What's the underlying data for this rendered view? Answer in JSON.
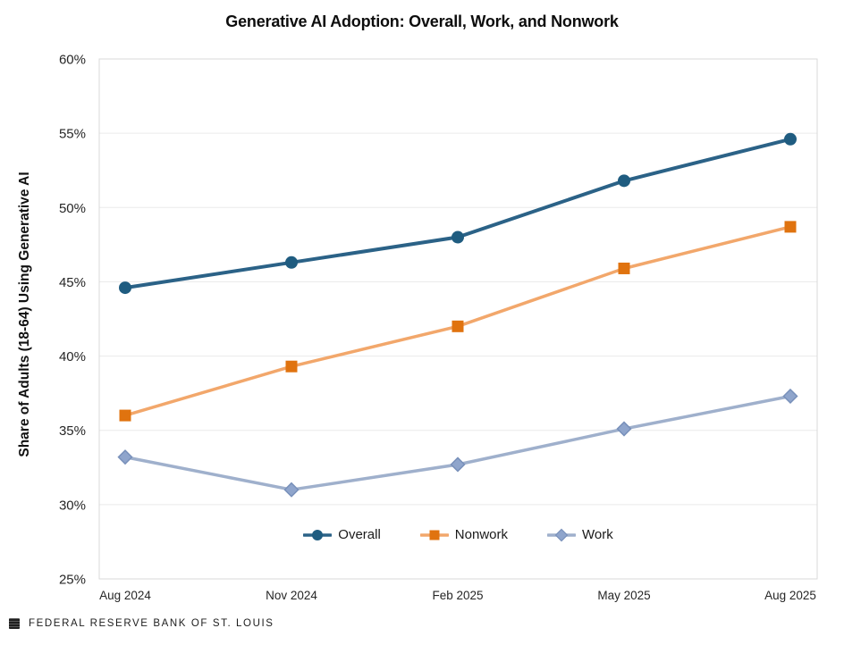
{
  "page": {
    "footer": {
      "org": "FEDERAL RESERVE BANK OF ST. LOUIS"
    }
  },
  "chart_data": {
    "type": "line",
    "title": "Generative AI Adoption: Overall, Work, and Nonwork",
    "xlabel": "",
    "ylabel": "Share of Adults (18-64) Using Generative AI",
    "categories": [
      "Aug 2024",
      "Nov 2024",
      "Feb 2025",
      "May 2025",
      "Aug 2025"
    ],
    "y_ticks": [
      "60%",
      "55%",
      "50%",
      "45%",
      "40%",
      "35%",
      "30%",
      "25%"
    ],
    "ylim": [
      25,
      60
    ],
    "grid": "horizontal",
    "legend_position": "bottom-center-inside",
    "colors": {
      "gridline": "#EAEAEA",
      "plot_border": "#D9D9D9",
      "tick_text": "#262626"
    },
    "series": [
      {
        "name": "Overall",
        "marker": "circle",
        "color": "#1F5C80",
        "line_color": "#2B6287",
        "values": [
          44.6,
          46.3,
          48.0,
          51.8,
          54.6
        ]
      },
      {
        "name": "Nonwork",
        "marker": "square",
        "color": "#E0730F",
        "line_color": "#F2A76B",
        "values": [
          36.0,
          39.3,
          42.0,
          45.9,
          48.7
        ]
      },
      {
        "name": "Work",
        "marker": "diamond",
        "color": "#8FA5CC",
        "marker_stroke": "#7890BA",
        "line_color": "#9FB0CC",
        "values": [
          33.2,
          31.0,
          32.7,
          35.1,
          37.3
        ]
      }
    ]
  }
}
